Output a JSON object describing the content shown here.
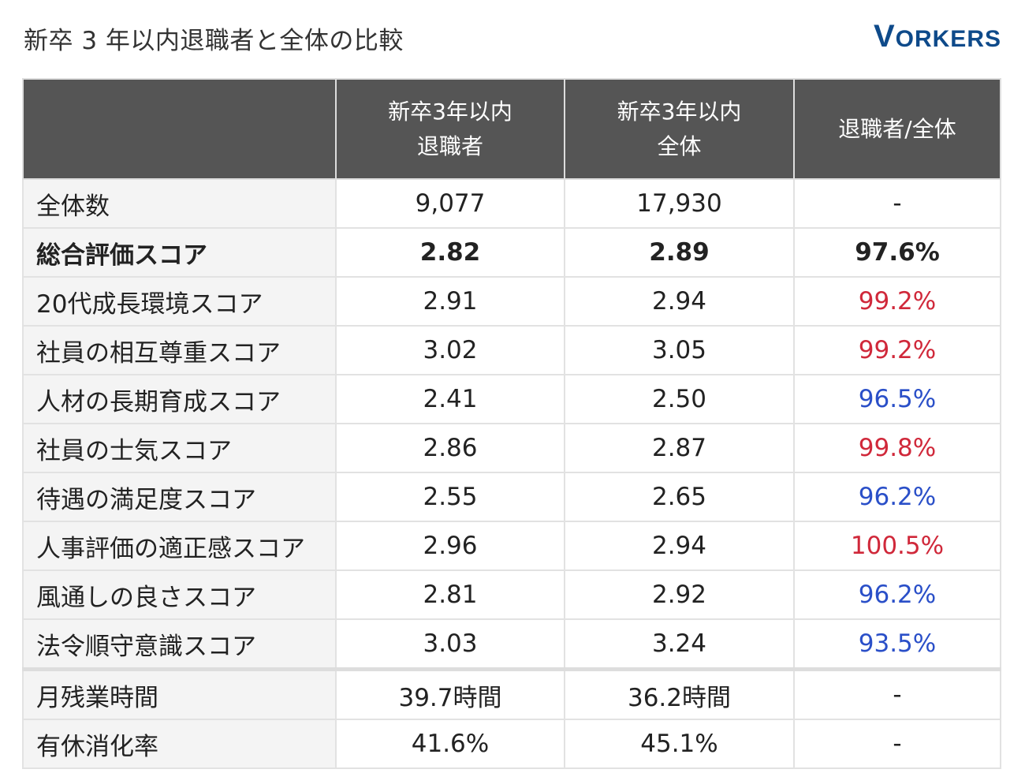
{
  "title": "新卒 3 年以内退職者と全体の比較",
  "logo": "VORKERS",
  "colors": {
    "header_bg": "#555555",
    "higher": "#d0283a",
    "lower": "#2a4fc8",
    "logo": "#0e4a8a"
  },
  "headers": [
    "",
    "新卒3年以内\n退職者",
    "新卒3年以内\n全体",
    "退職者/全体"
  ],
  "rows": [
    {
      "label": "全体数",
      "a": "9,077",
      "b": "17,930",
      "ratio": "-",
      "tone": ""
    },
    {
      "label": "総合評価スコア",
      "a": "2.82",
      "b": "2.89",
      "ratio": "97.6%",
      "tone": "",
      "bold": true
    },
    {
      "label": "20代成長環境スコア",
      "a": "2.91",
      "b": "2.94",
      "ratio": "99.2%",
      "tone": "red"
    },
    {
      "label": "社員の相互尊重スコア",
      "a": "3.02",
      "b": "3.05",
      "ratio": "99.2%",
      "tone": "red"
    },
    {
      "label": "人材の長期育成スコア",
      "a": "2.41",
      "b": "2.50",
      "ratio": "96.5%",
      "tone": "blue"
    },
    {
      "label": "社員の士気スコア",
      "a": "2.86",
      "b": "2.87",
      "ratio": "99.8%",
      "tone": "red"
    },
    {
      "label": "待遇の満足度スコア",
      "a": "2.55",
      "b": "2.65",
      "ratio": "96.2%",
      "tone": "blue"
    },
    {
      "label": "人事評価の適正感スコア",
      "a": "2.96",
      "b": "2.94",
      "ratio": "100.5%",
      "tone": "red"
    },
    {
      "label": "風通しの良さスコア",
      "a": "2.81",
      "b": "2.92",
      "ratio": "96.2%",
      "tone": "blue"
    },
    {
      "label": "法令順守意識スコア",
      "a": "3.03",
      "b": "3.24",
      "ratio": "93.5%",
      "tone": "blue"
    },
    {
      "label": "月残業時間",
      "a": "39.7時間",
      "b": "36.2時間",
      "ratio": "-",
      "tone": "",
      "sep": true
    },
    {
      "label": "有休消化率",
      "a": "41.6%",
      "b": "45.1%",
      "ratio": "-",
      "tone": ""
    }
  ]
}
